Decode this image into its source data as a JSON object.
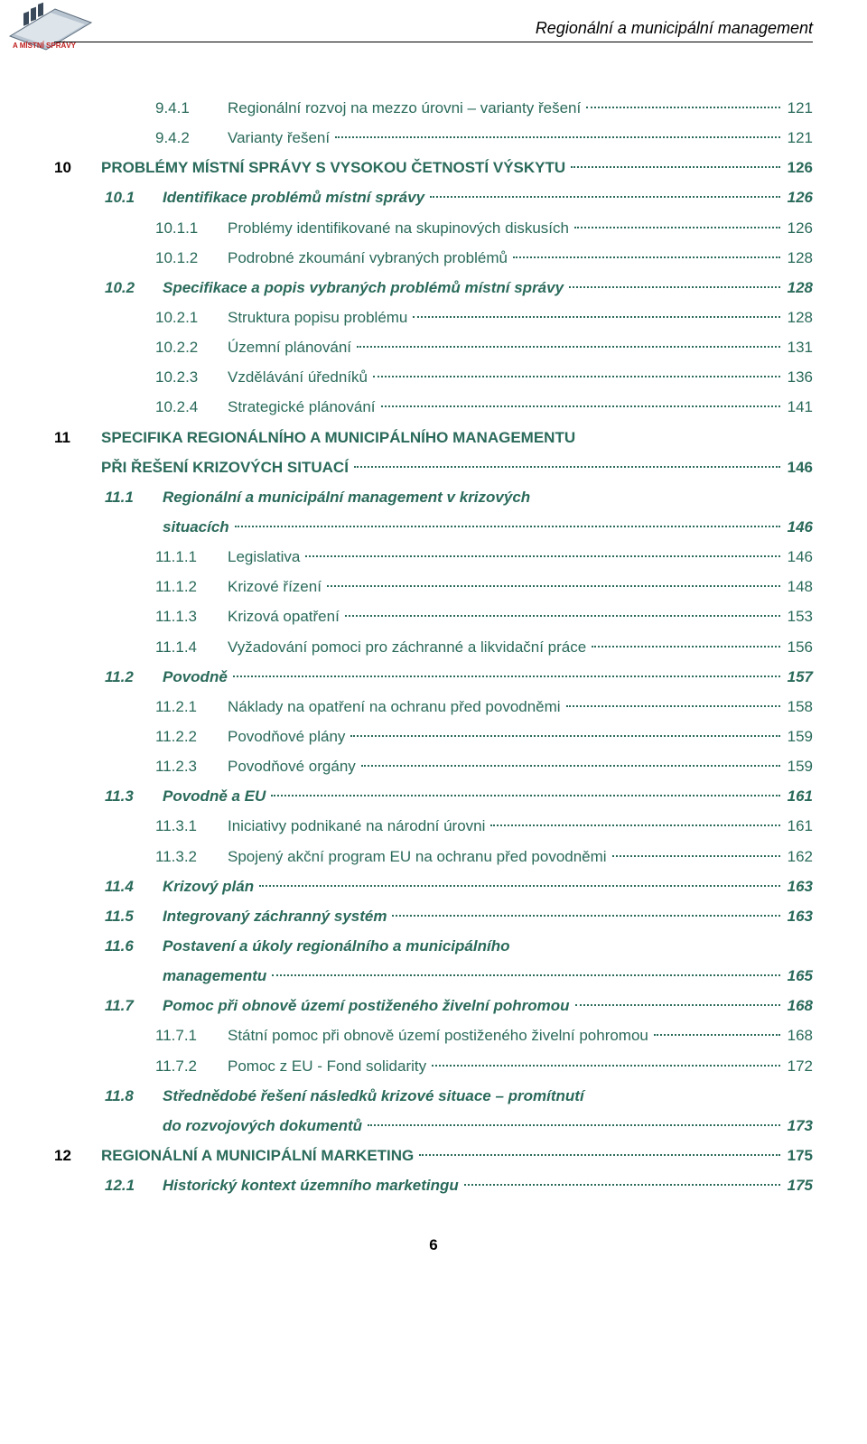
{
  "header": {
    "title": "Regionální a municipální management"
  },
  "colors": {
    "teal": "#2a6a5a",
    "black": "#000000",
    "background": "#ffffff"
  },
  "toc": {
    "entries": [
      {
        "level": "sub",
        "indent": 3,
        "num": "9.4.1",
        "label": "Regionální rozvoj na mezzo úrovni – varianty řešení",
        "page": "121"
      },
      {
        "level": "sub",
        "indent": 3,
        "num": "9.4.2",
        "label": "Varianty řešení",
        "page": "121"
      },
      {
        "level": "chapter",
        "indent": 0,
        "num": "10",
        "label": "PROBLÉMY MÍSTNÍ SPRÁVY S VYSOKOU ČETNOSTÍ VÝSKYTU",
        "page": "126"
      },
      {
        "level": "section",
        "indent": 2,
        "num": "10.1",
        "label": "Identifikace problémů místní správy",
        "page": "126"
      },
      {
        "level": "sub",
        "indent": 3,
        "num": "10.1.1",
        "label": "Problémy identifikované na skupinových diskusích",
        "page": "126"
      },
      {
        "level": "sub",
        "indent": 3,
        "num": "10.1.2",
        "label": "Podrobné zkoumání vybraných problémů",
        "page": "128"
      },
      {
        "level": "section",
        "indent": 2,
        "num": "10.2",
        "label": "Specifikace a popis vybraných problémů místní správy",
        "page": "128"
      },
      {
        "level": "sub",
        "indent": 3,
        "num": "10.2.1",
        "label": "Struktura popisu problému",
        "page": "128"
      },
      {
        "level": "sub",
        "indent": 3,
        "num": "10.2.2",
        "label": "Územní plánování",
        "page": "131"
      },
      {
        "level": "sub",
        "indent": 3,
        "num": "10.2.3",
        "label": "Vzdělávání úředníků",
        "page": "136"
      },
      {
        "level": "sub",
        "indent": 3,
        "num": "10.2.4",
        "label": "Strategické plánování",
        "page": "141"
      },
      {
        "level": "chapter",
        "indent": 0,
        "num": "11",
        "label_line1": "SPECIFIKA REGIONÁLNÍHO A MUNICIPÁLNÍHO MANAGEMENTU",
        "label_line2": "PŘI ŘEŠENÍ KRIZOVÝCH SITUACÍ",
        "page": "146",
        "multiline": true
      },
      {
        "level": "section",
        "indent": 2,
        "num": "11.1",
        "label_line1": "Regionální a municipální management v krizových",
        "label_line2": "situacích",
        "page": "146",
        "multiline": true
      },
      {
        "level": "sub",
        "indent": 3,
        "num": "11.1.1",
        "label": "Legislativa",
        "page": "146"
      },
      {
        "level": "sub",
        "indent": 3,
        "num": "11.1.2",
        "label": "Krizové řízení",
        "page": "148"
      },
      {
        "level": "sub",
        "indent": 3,
        "num": "11.1.3",
        "label": "Krizová opatření",
        "page": "153"
      },
      {
        "level": "sub",
        "indent": 3,
        "num": "11.1.4",
        "label": "Vyžadování pomoci pro záchranné a likvidační práce",
        "page": "156"
      },
      {
        "level": "section",
        "indent": 2,
        "num": "11.2",
        "label": "Povodně",
        "page": "157"
      },
      {
        "level": "sub",
        "indent": 3,
        "num": "11.2.1",
        "label": "Náklady na opatření na ochranu před povodněmi",
        "page": "158"
      },
      {
        "level": "sub",
        "indent": 3,
        "num": "11.2.2",
        "label": "Povodňové plány",
        "page": "159"
      },
      {
        "level": "sub",
        "indent": 3,
        "num": "11.2.3",
        "label": "Povodňové orgány",
        "page": "159"
      },
      {
        "level": "section",
        "indent": 2,
        "num": "11.3",
        "label": "Povodně a EU",
        "page": "161"
      },
      {
        "level": "sub",
        "indent": 3,
        "num": "11.3.1",
        "label": "Iniciativy podnikané na národní úrovni",
        "page": "161"
      },
      {
        "level": "sub",
        "indent": 3,
        "num": "11.3.2",
        "label": "Spojený akční program EU na ochranu před povodněmi",
        "page": "162"
      },
      {
        "level": "section",
        "indent": 2,
        "num": "11.4",
        "label": "Krizový plán",
        "page": "163"
      },
      {
        "level": "section",
        "indent": 2,
        "num": "11.5",
        "label": "Integrovaný záchranný systém",
        "page": "163"
      },
      {
        "level": "section",
        "indent": 2,
        "num": "11.6",
        "label_line1": "Postavení a úkoly regionálního a municipálního",
        "label_line2": "managementu",
        "page": "165",
        "multiline": true
      },
      {
        "level": "section",
        "indent": 2,
        "num": "11.7",
        "label": "Pomoc při obnově území postiženého živelní pohromou",
        "page": "168"
      },
      {
        "level": "sub",
        "indent": 3,
        "num": "11.7.1",
        "label": "Státní pomoc při obnově území postiženého živelní pohromou",
        "page": "168"
      },
      {
        "level": "sub",
        "indent": 3,
        "num": "11.7.2",
        "label": "Pomoc z EU -  Fond solidarity",
        "page": "172"
      },
      {
        "level": "section",
        "indent": 2,
        "num": "11.8",
        "label_line1": "Střednědobé řešení následků krizové situace – promítnutí",
        "label_line2": "do rozvojových dokumentů",
        "page": "173",
        "multiline": true
      },
      {
        "level": "chapter",
        "indent": 0,
        "num": "12",
        "label": "REGIONÁLNÍ A MUNICIPÁLNÍ MARKETING",
        "page": "175"
      },
      {
        "level": "section",
        "indent": 2,
        "num": "12.1",
        "label": "Historický kontext územního marketingu",
        "page": "175"
      }
    ]
  },
  "page_number": "6"
}
